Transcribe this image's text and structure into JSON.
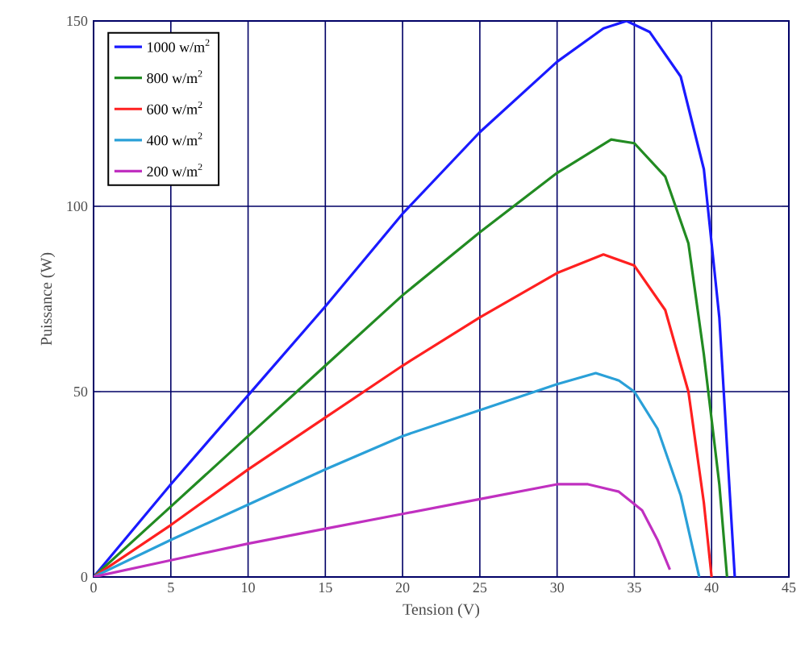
{
  "chart_data": {
    "type": "line",
    "xlabel": "Tension (V)",
    "ylabel": "Puissance (W)",
    "xlim": [
      0,
      45
    ],
    "ylim": [
      0,
      150
    ],
    "xticks": [
      0,
      5,
      10,
      15,
      20,
      25,
      30,
      35,
      40,
      45
    ],
    "yticks": [
      0,
      50,
      100,
      150
    ],
    "grid": true,
    "legend": "top left",
    "line_style": "solid",
    "series": [
      {
        "name": "1000 w/m$^{2}$",
        "color": "#1a1aff",
        "x": [
          0,
          5,
          10,
          15,
          20,
          25,
          30,
          33,
          34.5,
          36,
          38,
          39.5,
          40.5,
          41,
          41.5
        ],
        "values": [
          0,
          25,
          49,
          73,
          98,
          120,
          139,
          148,
          150,
          147,
          135,
          110,
          70,
          35,
          0
        ]
      },
      {
        "name": "800 w/m$^{2}$",
        "color": "#228b22",
        "x": [
          0,
          5,
          10,
          15,
          20,
          25,
          30,
          33.5,
          35,
          37,
          38.5,
          39.5,
          40.5,
          41
        ],
        "values": [
          0,
          19,
          38,
          57,
          76,
          93,
          109,
          118,
          117,
          108,
          90,
          60,
          25,
          0
        ]
      },
      {
        "name": "600 w/m$^{2}$",
        "color": "#ff2020",
        "x": [
          0,
          5,
          10,
          15,
          20,
          25,
          30,
          33,
          35,
          37,
          38.5,
          39.5,
          40
        ],
        "values": [
          0,
          14,
          29,
          43,
          57,
          70,
          82,
          87,
          84,
          72,
          50,
          20,
          0
        ]
      },
      {
        "name": "400 w/m$^{2}$",
        "color": "#2aa0d8",
        "x": [
          0,
          5,
          10,
          15,
          20,
          25,
          30,
          32.5,
          34,
          35,
          36.5,
          38,
          39.2
        ],
        "values": [
          0,
          10,
          19.5,
          29,
          38,
          45,
          52,
          55,
          53,
          50,
          40,
          22,
          0
        ]
      },
      {
        "name": "200 w/m$^{2}$",
        "color": "#c030c0",
        "x": [
          0,
          5,
          10,
          15,
          20,
          25,
          30,
          32,
          34,
          35.5,
          36.5,
          37.3
        ],
        "values": [
          0,
          4.5,
          9,
          13,
          17,
          21,
          25,
          25,
          23,
          18,
          10,
          2
        ]
      }
    ]
  }
}
